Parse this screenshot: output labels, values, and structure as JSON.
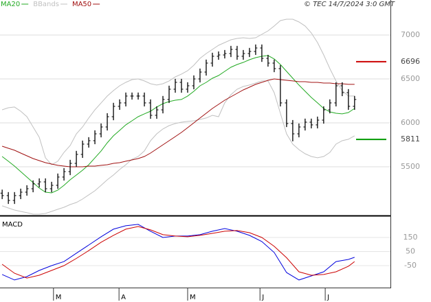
{
  "chart_data": [
    {
      "type": "ohlc",
      "source": "© TEC 14/7/2024 3:0 GMT",
      "x": [
        0,
        2,
        4,
        6,
        8,
        10,
        12,
        14,
        16,
        18,
        20,
        22,
        24,
        26,
        28,
        30,
        32,
        34,
        36,
        38,
        40,
        42,
        44,
        46,
        48,
        50,
        52,
        54,
        56,
        58,
        60,
        62,
        64,
        66,
        68,
        70,
        72,
        74,
        76,
        78,
        80,
        82,
        84,
        86,
        88,
        90,
        92,
        94,
        96,
        98,
        100,
        102,
        104,
        106,
        108,
        110,
        112,
        114
      ],
      "xlim": [
        -0.7,
        125.6
      ],
      "ylim": [
        4953,
        7289
      ],
      "yticks": [
        5500,
        6000,
        6500,
        7000
      ],
      "grid": true,
      "ohlc": {
        "color": "#000000",
        "open": [
          5200,
          5172,
          5117,
          5172,
          5211,
          5250,
          5305,
          5328,
          5250,
          5289,
          5383,
          5445,
          5539,
          5641,
          5758,
          5797,
          5875,
          5953,
          6070,
          6188,
          6227,
          6305,
          6305,
          6305,
          6227,
          6086,
          6148,
          6266,
          6383,
          6461,
          6383,
          6422,
          6500,
          6578,
          6680,
          6758,
          6773,
          6789,
          6836,
          6758,
          6789,
          6813,
          6852,
          6734,
          6680,
          6617,
          6227,
          5992,
          5875,
          5953,
          6008,
          5977,
          6031,
          6148,
          6227,
          6422,
          6344,
          6188
        ],
        "high": [
          5240,
          5212,
          5212,
          5251,
          5290,
          5345,
          5368,
          5368,
          5329,
          5423,
          5485,
          5579,
          5681,
          5798,
          5837,
          5915,
          5993,
          6110,
          6228,
          6267,
          6345,
          6345,
          6345,
          6345,
          6267,
          6188,
          6306,
          6423,
          6501,
          6501,
          6462,
          6540,
          6618,
          6720,
          6798,
          6813,
          6829,
          6876,
          6876,
          6829,
          6853,
          6892,
          6892,
          6774,
          6720,
          6657,
          6267,
          6032,
          5993,
          6048,
          6048,
          6071,
          6188,
          6267,
          6462,
          6462,
          6384,
          6306
        ],
        "low": [
          5132,
          5077,
          5077,
          5132,
          5171,
          5210,
          5265,
          5210,
          5210,
          5249,
          5343,
          5405,
          5499,
          5601,
          5718,
          5757,
          5835,
          5913,
          6030,
          6148,
          6187,
          6265,
          6265,
          6187,
          6046,
          6046,
          6108,
          6226,
          6343,
          6343,
          6343,
          6382,
          6460,
          6538,
          6640,
          6718,
          6733,
          6749,
          6718,
          6718,
          6749,
          6773,
          6694,
          6640,
          6577,
          6187,
          5952,
          5790,
          5835,
          5913,
          5937,
          5937,
          5991,
          6108,
          6187,
          6304,
          6148,
          6148
        ],
        "close": [
          5172,
          5117,
          5172,
          5211,
          5250,
          5305,
          5328,
          5250,
          5289,
          5383,
          5445,
          5539,
          5641,
          5758,
          5797,
          5875,
          5953,
          6070,
          6188,
          6227,
          6305,
          6305,
          6305,
          6227,
          6086,
          6148,
          6266,
          6383,
          6461,
          6383,
          6422,
          6500,
          6578,
          6680,
          6758,
          6773,
          6789,
          6836,
          6758,
          6789,
          6813,
          6852,
          6734,
          6680,
          6617,
          6227,
          5992,
          5875,
          5953,
          6008,
          5977,
          6031,
          6148,
          6227,
          6422,
          6344,
          6188,
          6266
        ]
      },
      "series": [
        {
          "name": "MA20",
          "color": "#22aa22",
          "values": [
            5617,
            5563,
            5508,
            5445,
            5383,
            5320,
            5258,
            5211,
            5203,
            5234,
            5289,
            5352,
            5406,
            5461,
            5523,
            5602,
            5680,
            5773,
            5852,
            5914,
            5977,
            6023,
            6070,
            6102,
            6133,
            6180,
            6219,
            6242,
            6258,
            6266,
            6305,
            6359,
            6422,
            6461,
            6508,
            6539,
            6586,
            6633,
            6664,
            6688,
            6719,
            6742,
            6758,
            6766,
            6727,
            6664,
            6586,
            6508,
            6430,
            6359,
            6289,
            6227,
            6164,
            6125,
            6109,
            6102,
            6117,
            6164
          ]
        },
        {
          "name": "BBands",
          "color": "#c0c0c0",
          "upper": [
            6148,
            6172,
            6180,
            6133,
            6070,
            5953,
            5836,
            5602,
            5523,
            5563,
            5664,
            5742,
            5875,
            5953,
            6055,
            6148,
            6227,
            6305,
            6367,
            6422,
            6461,
            6492,
            6500,
            6477,
            6445,
            6430,
            6445,
            6477,
            6523,
            6555,
            6594,
            6656,
            6734,
            6789,
            6836,
            6883,
            6914,
            6945,
            6961,
            6969,
            6961,
            6969,
            7008,
            7047,
            7102,
            7164,
            7180,
            7180,
            7148,
            7102,
            7023,
            6914,
            6773,
            6617,
            6477,
            6367,
            6305,
            6305
          ],
          "lower": [
            5055,
            5031,
            5008,
            4992,
            4977,
            4961,
            4961,
            4969,
            4992,
            5016,
            5039,
            5070,
            5094,
            5133,
            5180,
            5227,
            5289,
            5352,
            5406,
            5469,
            5523,
            5586,
            5617,
            5680,
            5797,
            5875,
            5930,
            5969,
            5992,
            6008,
            6016,
            6023,
            6039,
            6055,
            6086,
            6070,
            6227,
            6320,
            6383,
            6414,
            6430,
            6453,
            6477,
            6477,
            6344,
            6109,
            5875,
            5758,
            5695,
            5648,
            5617,
            5602,
            5617,
            5664,
            5758,
            5797,
            5813,
            5852
          ]
        },
        {
          "name": "MA50",
          "color": "#a01010",
          "values": [
            5734,
            5711,
            5688,
            5656,
            5625,
            5594,
            5570,
            5547,
            5531,
            5516,
            5508,
            5500,
            5500,
            5500,
            5508,
            5508,
            5516,
            5523,
            5539,
            5547,
            5563,
            5578,
            5594,
            5617,
            5656,
            5703,
            5750,
            5797,
            5844,
            5891,
            5945,
            6000,
            6055,
            6109,
            6164,
            6211,
            6258,
            6297,
            6336,
            6375,
            6406,
            6438,
            6461,
            6484,
            6500,
            6492,
            6484,
            6477,
            6469,
            6469,
            6461,
            6461,
            6453,
            6453,
            6445,
            6445,
            6438,
            6438
          ]
        }
      ],
      "levels": [
        {
          "value": 6696,
          "color": "#cc0000"
        },
        {
          "value": 5811,
          "color": "#009900"
        }
      ]
    },
    {
      "type": "macd",
      "title": "MACD",
      "x": [
        0,
        4,
        8,
        12,
        16,
        20,
        24,
        28,
        32,
        36,
        40,
        44,
        48,
        52,
        56,
        60,
        64,
        68,
        72,
        76,
        80,
        84,
        88,
        92,
        96,
        100,
        104,
        108,
        112,
        114
      ],
      "xlim": [
        -0.7,
        125.6
      ],
      "xticks": [
        {
          "value": 16.6,
          "label": "M"
        },
        {
          "value": 37.8,
          "label": "A"
        },
        {
          "value": 60,
          "label": "M"
        },
        {
          "value": 83.4,
          "label": "J"
        },
        {
          "value": 104.5,
          "label": "J"
        }
      ],
      "ylim": [
        -201,
        296
      ],
      "yticks": [
        150,
        50,
        -50
      ],
      "series": [
        {
          "color": "#0000dd",
          "values": [
            -113,
            -152,
            -128,
            -84,
            -50,
            -21,
            38,
            96,
            155,
            209,
            233,
            243,
            194,
            150,
            160,
            160,
            170,
            194,
            213,
            194,
            165,
            121,
            43,
            -99,
            -152,
            -123,
            -94,
            -21,
            -6,
            9
          ]
        },
        {
          "color": "#cc0000",
          "values": [
            -40,
            -104,
            -138,
            -118,
            -84,
            -50,
            1,
            57,
            116,
            165,
            209,
            228,
            204,
            170,
            160,
            155,
            165,
            179,
            194,
            199,
            184,
            150,
            87,
            6,
            -94,
            -118,
            -113,
            -94,
            -55,
            -21
          ]
        }
      ]
    }
  ]
}
